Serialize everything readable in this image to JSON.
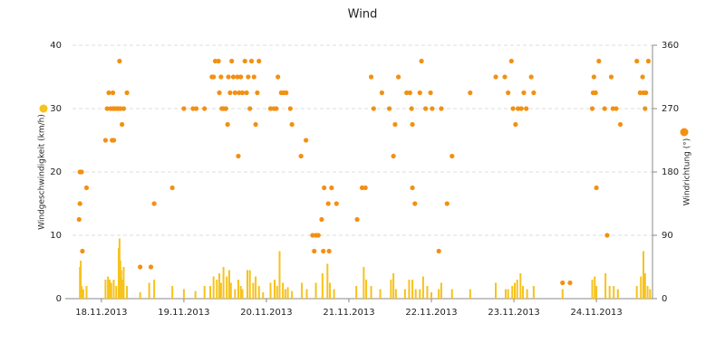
{
  "chart_data": {
    "type": "bar",
    "title": "Wind",
    "xlim": [
      0.15,
      7.18
    ],
    "xticks": [
      {
        "value": 0.5,
        "label": "18.11.2013"
      },
      {
        "value": 1.5,
        "label": "19.11.2013"
      },
      {
        "value": 2.5,
        "label": "20.11.2013"
      },
      {
        "value": 3.5,
        "label": "21.11.2013"
      },
      {
        "value": 4.5,
        "label": "22.11.2013"
      },
      {
        "value": 5.5,
        "label": "23.11.2013"
      },
      {
        "value": 6.5,
        "label": "24.11.2013"
      }
    ],
    "ylim": [
      0,
      40
    ],
    "yticks": [
      0,
      10,
      20,
      30,
      40
    ],
    "y2lim": [
      0,
      360
    ],
    "y2ticks": [
      0,
      90,
      180,
      270,
      360
    ],
    "grid": true,
    "series": [
      {
        "name": "Windgeschwindigkeit (km/h)",
        "color": "#f7c21b",
        "type": "bar",
        "x": [
          0.24,
          0.25,
          0.26,
          0.28,
          0.32,
          0.55,
          0.58,
          0.6,
          0.62,
          0.65,
          0.68,
          0.71,
          0.72,
          0.73,
          0.74,
          0.76,
          0.77,
          0.81,
          0.97,
          1.08,
          1.14,
          1.36,
          1.5,
          1.64,
          1.75,
          1.82,
          1.86,
          1.9,
          1.93,
          1.95,
          1.98,
          2.02,
          2.05,
          2.07,
          2.12,
          2.16,
          2.19,
          2.21,
          2.27,
          2.3,
          2.34,
          2.37,
          2.41,
          2.46,
          2.55,
          2.6,
          2.63,
          2.66,
          2.7,
          2.73,
          2.76,
          2.81,
          2.93,
          2.99,
          3.1,
          3.18,
          3.24,
          3.27,
          3.32,
          3.59,
          3.68,
          3.71,
          3.77,
          3.88,
          4.01,
          4.04,
          4.07,
          4.18,
          4.23,
          4.27,
          4.31,
          4.36,
          4.4,
          4.45,
          4.5,
          4.59,
          4.62,
          4.75,
          4.97,
          5.28,
          5.4,
          5.43,
          5.48,
          5.51,
          5.54,
          5.58,
          5.61,
          5.66,
          5.74,
          6.09,
          6.45,
          6.48,
          6.5,
          6.61,
          6.66,
          6.71,
          6.76,
          6.99,
          7.04,
          7.07,
          7.09,
          7.12,
          7.15
        ],
        "values": [
          5,
          6,
          2,
          1.5,
          2,
          3,
          3.5,
          3,
          2.5,
          3,
          2,
          8,
          9.5,
          6,
          4.5,
          3,
          5,
          2,
          1,
          2.5,
          3,
          2,
          1.5,
          1.2,
          2,
          2,
          3.5,
          3,
          4,
          2.5,
          5,
          3.5,
          4.5,
          2.5,
          1.5,
          3,
          2,
          1.5,
          4.5,
          4.5,
          2.5,
          3.5,
          2,
          1,
          2.5,
          3,
          2,
          7.5,
          2.5,
          1.5,
          1.8,
          1.2,
          2.5,
          1.5,
          2.5,
          4,
          5.5,
          2.5,
          1.5,
          2,
          5,
          3,
          2,
          1.5,
          3,
          4,
          1.5,
          1.5,
          3,
          3,
          1.5,
          1.5,
          3.5,
          2,
          1,
          1.5,
          2.5,
          1.5,
          1.5,
          2.5,
          1.5,
          1.5,
          2,
          2.5,
          3,
          4,
          2,
          1.5,
          2,
          1.5,
          3,
          3.5,
          2,
          4,
          2,
          2,
          1.5,
          2,
          3.5,
          7.5,
          4,
          2,
          1.5
        ]
      },
      {
        "name": "Windrichtung (°)",
        "color": "#f39012",
        "type": "scatter",
        "axis": "y2",
        "x": [
          0.23,
          0.24,
          0.24,
          0.26,
          0.27,
          0.32,
          0.55,
          0.57,
          0.59,
          0.61,
          0.63,
          0.64,
          0.64,
          0.65,
          0.66,
          0.69,
          0.7,
          0.72,
          0.73,
          0.75,
          0.77,
          0.81,
          0.97,
          1.1,
          1.14,
          1.36,
          1.5,
          1.61,
          1.65,
          1.75,
          1.84,
          1.86,
          1.88,
          1.92,
          1.93,
          1.95,
          1.96,
          1.98,
          2.01,
          2.03,
          2.04,
          2.06,
          2.08,
          2.1,
          2.12,
          2.15,
          2.16,
          2.17,
          2.19,
          2.21,
          2.24,
          2.26,
          2.28,
          2.3,
          2.32,
          2.35,
          2.37,
          2.39,
          2.41,
          2.55,
          2.59,
          2.62,
          2.64,
          2.68,
          2.71,
          2.74,
          2.79,
          2.81,
          2.92,
          2.98,
          3.06,
          3.08,
          3.1,
          3.13,
          3.17,
          3.19,
          3.2,
          3.25,
          3.26,
          3.29,
          3.35,
          3.6,
          3.66,
          3.7,
          3.77,
          3.8,
          3.9,
          3.99,
          4.04,
          4.06,
          4.1,
          4.2,
          4.24,
          4.26,
          4.27,
          4.27,
          4.3,
          4.36,
          4.38,
          4.43,
          4.49,
          4.51,
          4.59,
          4.62,
          4.69,
          4.75,
          4.97,
          5.28,
          5.39,
          5.43,
          5.47,
          5.49,
          5.52,
          5.55,
          5.59,
          5.62,
          5.65,
          5.71,
          5.74,
          6.09,
          6.18,
          6.45,
          6.46,
          6.47,
          6.49,
          6.5,
          6.53,
          6.6,
          6.63,
          6.68,
          6.7,
          6.74,
          6.79,
          6.99,
          7.03,
          7.06,
          7.07,
          7.09,
          7.1,
          7.13
        ],
        "values": [
          112.5,
          135,
          180,
          180,
          67.5,
          157.5,
          225,
          270,
          292.5,
          270,
          225,
          292.5,
          270,
          225,
          270,
          270,
          270,
          337.5,
          270,
          247.5,
          270,
          292.5,
          45,
          45,
          135,
          157.5,
          270,
          270,
          270,
          270,
          315,
          315,
          337.5,
          337.5,
          292.5,
          315,
          270,
          270,
          270,
          247.5,
          315,
          292.5,
          337.5,
          315,
          292.5,
          315,
          202.5,
          292.5,
          315,
          292.5,
          337.5,
          292.5,
          315,
          270,
          337.5,
          315,
          247.5,
          292.5,
          337.5,
          270,
          270,
          270,
          315,
          292.5,
          292.5,
          292.5,
          270,
          247.5,
          202.5,
          225,
          90,
          67.5,
          90,
          90,
          112.5,
          67.5,
          157.5,
          135,
          67.5,
          157.5,
          135,
          112.5,
          157.5,
          157.5,
          315,
          270,
          292.5,
          270,
          202.5,
          247.5,
          315,
          292.5,
          292.5,
          270,
          247.5,
          157.5,
          135,
          292.5,
          337.5,
          270,
          292.5,
          270,
          67.5,
          270,
          135,
          202.5,
          292.5,
          315,
          315,
          292.5,
          337.5,
          270,
          247.5,
          270,
          270,
          292.5,
          270,
          315,
          292.5,
          22.5,
          22.5,
          270,
          292.5,
          315,
          292.5,
          157.5,
          337.5,
          270,
          90,
          315,
          270,
          270,
          247.5,
          337.5,
          292.5,
          315,
          292.5,
          270,
          292.5,
          337.5
        ]
      }
    ]
  }
}
